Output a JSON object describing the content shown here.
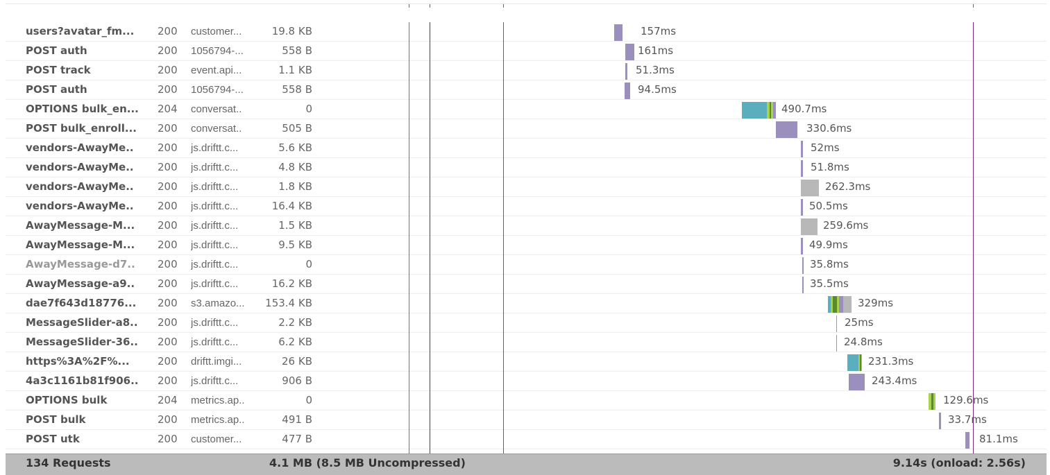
{
  "rows": [
    {
      "name": "users?avatar_fm...",
      "status": "200",
      "domain": "customer...",
      "size": "19.8 KB",
      "duration": "157ms",
      "dim": false
    },
    {
      "name": "POST auth",
      "status": "200",
      "domain": "1056794-...",
      "size": "558 B",
      "duration": "161ms",
      "dim": false
    },
    {
      "name": "POST track",
      "status": "200",
      "domain": "event.api...",
      "size": "1.1 KB",
      "duration": "51.3ms",
      "dim": false
    },
    {
      "name": "POST auth",
      "status": "200",
      "domain": "1056794-...",
      "size": "558 B",
      "duration": "94.5ms",
      "dim": false
    },
    {
      "name": "OPTIONS bulk_en...",
      "status": "204",
      "domain": "conversat..",
      "size": "0",
      "duration": "490.7ms",
      "dim": false
    },
    {
      "name": "POST bulk_enroll...",
      "status": "200",
      "domain": "conversat..",
      "size": "505 B",
      "duration": "330.6ms",
      "dim": false
    },
    {
      "name": "vendors-AwayMe..",
      "status": "200",
      "domain": "js.driftt.c...",
      "size": "5.6 KB",
      "duration": "52ms",
      "dim": false
    },
    {
      "name": "vendors-AwayMe..",
      "status": "200",
      "domain": "js.driftt.c...",
      "size": "4.8 KB",
      "duration": "51.8ms",
      "dim": false
    },
    {
      "name": "vendors-AwayMe..",
      "status": "200",
      "domain": "js.driftt.c...",
      "size": "1.8 KB",
      "duration": "262.3ms",
      "dim": false
    },
    {
      "name": "vendors-AwayMe..",
      "status": "200",
      "domain": "js.driftt.c...",
      "size": "16.4 KB",
      "duration": "50.5ms",
      "dim": false
    },
    {
      "name": "AwayMessage-M...",
      "status": "200",
      "domain": "js.driftt.c...",
      "size": "1.5 KB",
      "duration": "259.6ms",
      "dim": false
    },
    {
      "name": "AwayMessage-M...",
      "status": "200",
      "domain": "js.driftt.c...",
      "size": "9.5 KB",
      "duration": "49.9ms",
      "dim": false
    },
    {
      "name": "AwayMessage-d7..",
      "status": "200",
      "domain": "js.driftt.c...",
      "size": "0",
      "duration": "35.8ms",
      "dim": true
    },
    {
      "name": "AwayMessage-a9..",
      "status": "200",
      "domain": "js.driftt.c...",
      "size": "16.2 KB",
      "duration": "35.5ms",
      "dim": false
    },
    {
      "name": "dae7f643d18776...",
      "status": "200",
      "domain": "s3.amazo...",
      "size": "153.4 KB",
      "duration": "329ms",
      "dim": false
    },
    {
      "name": "MessageSlider-a8..",
      "status": "200",
      "domain": "js.driftt.c...",
      "size": "2.2 KB",
      "duration": "25ms",
      "dim": false
    },
    {
      "name": "MessageSlider-36..",
      "status": "200",
      "domain": "js.driftt.c...",
      "size": "6.2 KB",
      "duration": "24.8ms",
      "dim": false
    },
    {
      "name": "https%3A%2F%...",
      "status": "200",
      "domain": "driftt.imgi...",
      "size": "26 KB",
      "duration": "231.3ms",
      "dim": false
    },
    {
      "name": "4a3c1161b81f906..",
      "status": "200",
      "domain": "js.driftt.c...",
      "size": "906 B",
      "duration": "243.4ms",
      "dim": false
    },
    {
      "name": "OPTIONS bulk",
      "status": "204",
      "domain": "metrics.ap..",
      "size": "0",
      "duration": "129.6ms",
      "dim": false
    },
    {
      "name": "POST bulk",
      "status": "200",
      "domain": "metrics.ap..",
      "size": "491 B",
      "duration": "33.7ms",
      "dim": false
    },
    {
      "name": "POST utk",
      "status": "200",
      "domain": "customer...",
      "size": "477 B",
      "duration": "81.1ms",
      "dim": false
    }
  ],
  "footer": {
    "requests": "134 Requests",
    "size": "4.1 MB  (8.5 MB Uncompressed)",
    "time": "9.14s (onload: 2.56s)"
  },
  "colors": {
    "receiving": "#9a8fbd",
    "cached": "#b8b8b8",
    "connecting": "#5aaebd",
    "ssl": "#a8d350",
    "waiting": "#5a8a2a",
    "dom_content_loaded": "#3a9a3a",
    "first_paint": "#3333cc",
    "onload": "#cc3333",
    "end": "#7a2a7a"
  }
}
